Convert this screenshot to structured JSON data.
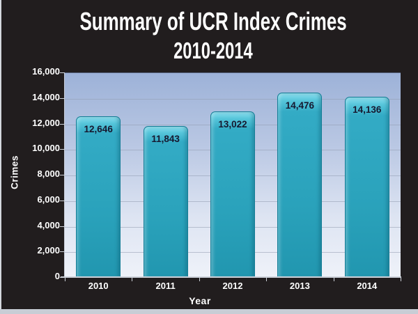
{
  "title": {
    "line1": "Summary of UCR Index Crimes",
    "line2": "2010-2014"
  },
  "colors": {
    "background": "#211d1e",
    "bar_fill": "#2da4bd",
    "bar_border": "#147d96",
    "bar_highlight": "#8adeee",
    "plot_gradient_top": "#9db2d8",
    "plot_gradient_bottom": "#eff2f9",
    "text_light": "#ffffff",
    "data_label": "#16182f",
    "edge_strip": "#c8cdd5"
  },
  "chart_data": {
    "type": "bar",
    "title": "Summary of UCR Index Crimes 2010-2014",
    "categories": [
      "2010",
      "2011",
      "2012",
      "2013",
      "2014"
    ],
    "values": [
      12646,
      11843,
      13022,
      14476,
      14136
    ],
    "value_labels": [
      "12,646",
      "11,843",
      "13,022",
      "14,476",
      "14,136"
    ],
    "xlabel": "Year",
    "ylabel": "Crimes",
    "ylim": [
      0,
      16000
    ],
    "y_tick_step": 2000,
    "y_tick_labels": [
      "0",
      "2,000",
      "4,000",
      "6,000",
      "8,000",
      "10,000",
      "12,000",
      "14,000",
      "16,000"
    ],
    "grid": true,
    "legend": false
  }
}
